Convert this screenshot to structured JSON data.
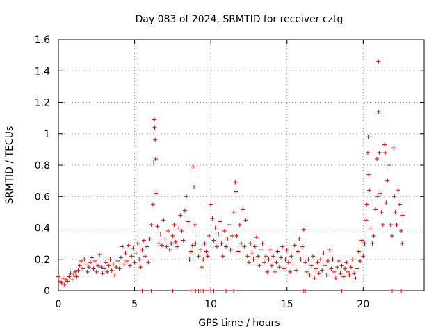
{
  "chart_data": {
    "type": "scatter",
    "title": "Day 083 of 2024, SRMTID for receiver cztg",
    "xlabel": "GPS time / hours",
    "ylabel": "SRMTID / TECUs",
    "xlim": [
      0,
      24
    ],
    "ylim": [
      0,
      1.6
    ],
    "grid": true,
    "marker": "+",
    "marker_color": "#e00000",
    "x_ticks": [
      0,
      5,
      10,
      15,
      20
    ],
    "x_tick_labels": [
      "0",
      "5",
      "10",
      "15",
      "20"
    ],
    "y_ticks": [
      0,
      0.2,
      0.4,
      0.6,
      0.8,
      1.0,
      1.2,
      1.4,
      1.6
    ],
    "y_tick_labels": [
      "0",
      "0.2",
      "0.4",
      "0.6",
      "0.8",
      "1",
      "1.2",
      "1.4",
      "1.6"
    ],
    "series": [
      {
        "name": "SRMTID",
        "points": [
          [
            0.0,
            0.09
          ],
          [
            0.1,
            0.06
          ],
          [
            0.2,
            0.05
          ],
          [
            0.3,
            0.08
          ],
          [
            0.4,
            0.04
          ],
          [
            0.5,
            0.07
          ],
          [
            0.6,
            0.06
          ],
          [
            0.7,
            0.09
          ],
          [
            0.8,
            0.11
          ],
          [
            0.9,
            0.07
          ],
          [
            1.0,
            0.1
          ],
          [
            1.1,
            0.12
          ],
          [
            1.2,
            0.09
          ],
          [
            1.3,
            0.13
          ],
          [
            1.4,
            0.16
          ],
          [
            1.5,
            0.19
          ],
          [
            1.6,
            0.14
          ],
          [
            1.7,
            0.2
          ],
          [
            1.8,
            0.17
          ],
          [
            1.9,
            0.12
          ],
          [
            2.0,
            0.15
          ],
          [
            2.1,
            0.18
          ],
          [
            2.2,
            0.21
          ],
          [
            2.3,
            0.14
          ],
          [
            2.4,
            0.19
          ],
          [
            2.5,
            0.12
          ],
          [
            2.6,
            0.16
          ],
          [
            2.7,
            0.23
          ],
          [
            2.8,
            0.15
          ],
          [
            2.9,
            0.11
          ],
          [
            3.0,
            0.14
          ],
          [
            3.1,
            0.18
          ],
          [
            3.2,
            0.12
          ],
          [
            3.3,
            0.16
          ],
          [
            3.4,
            0.2
          ],
          [
            3.5,
            0.13
          ],
          [
            3.6,
            0.17
          ],
          [
            3.7,
            0.1
          ],
          [
            3.8,
            0.15
          ],
          [
            3.9,
            0.19
          ],
          [
            4.0,
            0.14
          ],
          [
            4.1,
            0.21
          ],
          [
            4.2,
            0.28
          ],
          [
            4.3,
            0.17
          ],
          [
            4.4,
            0.24
          ],
          [
            4.5,
            0.19
          ],
          [
            4.6,
            0.29
          ],
          [
            4.7,
            0.16
          ],
          [
            4.8,
            0.22
          ],
          [
            4.9,
            0.27
          ],
          [
            5.0,
            0.18
          ],
          [
            5.1,
            0.24
          ],
          [
            5.2,
            0.3
          ],
          [
            5.3,
            0.2
          ],
          [
            5.4,
            0.15
          ],
          [
            5.5,
            0.26
          ],
          [
            5.6,
            0.32
          ],
          [
            5.7,
            0.22
          ],
          [
            5.8,
            0.28
          ],
          [
            5.9,
            0.18
          ],
          [
            6.0,
            0.33
          ],
          [
            6.1,
            0.42
          ],
          [
            6.2,
            0.55
          ],
          [
            6.25,
            0.82
          ],
          [
            6.3,
            1.09
          ],
          [
            6.32,
            1.04
          ],
          [
            6.35,
            0.96
          ],
          [
            6.38,
            0.84
          ],
          [
            6.4,
            0.62
          ],
          [
            6.5,
            0.41
          ],
          [
            6.6,
            0.3
          ],
          [
            6.7,
            0.36
          ],
          [
            6.8,
            0.29
          ],
          [
            6.9,
            0.45
          ],
          [
            7.0,
            0.33
          ],
          [
            7.1,
            0.28
          ],
          [
            7.2,
            0.38
          ],
          [
            7.3,
            0.26
          ],
          [
            7.4,
            0.3
          ],
          [
            7.5,
            0.35
          ],
          [
            7.6,
            0.42
          ],
          [
            7.7,
            0.31
          ],
          [
            7.8,
            0.28
          ],
          [
            7.9,
            0.4
          ],
          [
            8.0,
            0.48
          ],
          [
            8.1,
            0.38
          ],
          [
            8.2,
            0.32
          ],
          [
            8.3,
            0.51
          ],
          [
            8.4,
            0.6
          ],
          [
            8.5,
            0.44
          ],
          [
            8.6,
            0.2
          ],
          [
            8.7,
            0.25
          ],
          [
            8.8,
            0.29
          ],
          [
            8.85,
            0.79
          ],
          [
            8.9,
            0.66
          ],
          [
            8.95,
            0.42
          ],
          [
            9.0,
            0.3
          ],
          [
            9.1,
            0.36
          ],
          [
            9.2,
            0.22
          ],
          [
            9.3,
            0.26
          ],
          [
            9.4,
            0.15
          ],
          [
            9.5,
            0.2
          ],
          [
            9.6,
            0.3
          ],
          [
            9.7,
            0.25
          ],
          [
            9.8,
            0.22
          ],
          [
            9.9,
            0.35
          ],
          [
            10.0,
            0.55
          ],
          [
            10.1,
            0.46
          ],
          [
            10.2,
            0.32
          ],
          [
            10.3,
            0.4
          ],
          [
            10.4,
            0.28
          ],
          [
            10.5,
            0.36
          ],
          [
            10.6,
            0.44
          ],
          [
            10.7,
            0.3
          ],
          [
            10.8,
            0.22
          ],
          [
            10.9,
            0.38
          ],
          [
            11.0,
            0.28
          ],
          [
            11.1,
            0.33
          ],
          [
            11.2,
            0.42
          ],
          [
            11.3,
            0.26
          ],
          [
            11.4,
            0.35
          ],
          [
            11.5,
            0.5
          ],
          [
            11.6,
            0.69
          ],
          [
            11.65,
            0.63
          ],
          [
            11.7,
            0.35
          ],
          [
            11.8,
            0.25
          ],
          [
            11.9,
            0.42
          ],
          [
            12.0,
            0.3
          ],
          [
            12.1,
            0.52
          ],
          [
            12.2,
            0.28
          ],
          [
            12.3,
            0.45
          ],
          [
            12.4,
            0.22
          ],
          [
            12.5,
            0.18
          ],
          [
            12.6,
            0.3
          ],
          [
            12.7,
            0.24
          ],
          [
            12.8,
            0.2
          ],
          [
            12.9,
            0.28
          ],
          [
            13.0,
            0.34
          ],
          [
            13.1,
            0.22
          ],
          [
            13.2,
            0.16
          ],
          [
            13.3,
            0.26
          ],
          [
            13.4,
            0.3
          ],
          [
            13.5,
            0.18
          ],
          [
            13.6,
            0.22
          ],
          [
            13.7,
            0.12
          ],
          [
            13.8,
            0.2
          ],
          [
            13.9,
            0.26
          ],
          [
            14.0,
            0.16
          ],
          [
            14.1,
            0.22
          ],
          [
            14.2,
            0.12
          ],
          [
            14.3,
            0.18
          ],
          [
            14.4,
            0.25
          ],
          [
            14.5,
            0.15
          ],
          [
            14.6,
            0.21
          ],
          [
            14.7,
            0.28
          ],
          [
            14.8,
            0.14
          ],
          [
            14.9,
            0.2
          ],
          [
            15.0,
            0.26
          ],
          [
            15.1,
            0.18
          ],
          [
            15.2,
            0.12
          ],
          [
            15.3,
            0.22
          ],
          [
            15.4,
            0.17
          ],
          [
            15.5,
            0.29
          ],
          [
            15.6,
            0.13
          ],
          [
            15.7,
            0.25
          ],
          [
            15.8,
            0.33
          ],
          [
            15.9,
            0.2
          ],
          [
            16.0,
            0.28
          ],
          [
            16.1,
            0.39
          ],
          [
            16.2,
            0.18
          ],
          [
            16.3,
            0.12
          ],
          [
            16.4,
            0.2
          ],
          [
            16.5,
            0.1
          ],
          [
            16.6,
            0.16
          ],
          [
            16.7,
            0.22
          ],
          [
            16.8,
            0.08
          ],
          [
            16.9,
            0.14
          ],
          [
            17.0,
            0.18
          ],
          [
            17.1,
            0.11
          ],
          [
            17.2,
            0.2
          ],
          [
            17.3,
            0.13
          ],
          [
            17.4,
            0.24
          ],
          [
            17.5,
            0.16
          ],
          [
            17.6,
            0.1
          ],
          [
            17.7,
            0.19
          ],
          [
            17.8,
            0.26
          ],
          [
            17.9,
            0.14
          ],
          [
            18.0,
            0.2
          ],
          [
            18.1,
            0.12
          ],
          [
            18.2,
            0.08
          ],
          [
            18.3,
            0.15
          ],
          [
            18.4,
            0.19
          ],
          [
            18.5,
            0.11
          ],
          [
            18.6,
            0.16
          ],
          [
            18.7,
            0.09
          ],
          [
            18.8,
            0.14
          ],
          [
            18.9,
            0.18
          ],
          [
            19.0,
            0.12
          ],
          [
            19.1,
            0.1
          ],
          [
            19.2,
            0.15
          ],
          [
            19.3,
            0.2
          ],
          [
            19.4,
            0.11
          ],
          [
            19.5,
            0.08
          ],
          [
            19.6,
            0.14
          ],
          [
            19.7,
            0.25
          ],
          [
            19.8,
            0.19
          ],
          [
            19.9,
            0.32
          ],
          [
            20.0,
            0.22
          ],
          [
            20.1,
            0.3
          ],
          [
            20.2,
            0.45
          ],
          [
            20.25,
            0.55
          ],
          [
            20.3,
            0.88
          ],
          [
            20.33,
            0.98
          ],
          [
            20.36,
            0.74
          ],
          [
            20.4,
            0.64
          ],
          [
            20.5,
            0.4
          ],
          [
            20.6,
            0.3
          ],
          [
            20.7,
            0.35
          ],
          [
            20.8,
            0.52
          ],
          [
            20.9,
            0.84
          ],
          [
            20.95,
            0.6
          ],
          [
            21.0,
            1.46
          ],
          [
            21.02,
            1.14
          ],
          [
            21.05,
            0.88
          ],
          [
            21.1,
            0.62
          ],
          [
            21.2,
            0.5
          ],
          [
            21.3,
            0.42
          ],
          [
            21.4,
            0.93
          ],
          [
            21.45,
            0.88
          ],
          [
            21.5,
            0.56
          ],
          [
            21.6,
            0.7
          ],
          [
            21.7,
            0.8
          ],
          [
            21.8,
            0.42
          ],
          [
            21.9,
            0.35
          ],
          [
            22.0,
            0.91
          ],
          [
            22.05,
            0.6
          ],
          [
            22.1,
            0.5
          ],
          [
            22.2,
            0.42
          ],
          [
            22.3,
            0.64
          ],
          [
            22.4,
            0.55
          ],
          [
            22.5,
            0.38
          ],
          [
            22.55,
            0.3
          ],
          [
            22.6,
            0.48
          ],
          [
            5.5,
            0.0
          ],
          [
            6.1,
            0.0
          ],
          [
            7.5,
            0.0
          ],
          [
            8.7,
            0.0
          ],
          [
            9.0,
            0.0
          ],
          [
            9.1,
            0.0
          ],
          [
            9.2,
            0.0
          ],
          [
            9.3,
            0.0
          ],
          [
            9.5,
            0.0
          ],
          [
            10.0,
            0.0
          ],
          [
            10.2,
            0.0
          ],
          [
            11.0,
            0.0
          ],
          [
            11.5,
            0.0
          ],
          [
            16.1,
            0.0
          ],
          [
            16.2,
            0.0
          ],
          [
            18.6,
            0.0
          ],
          [
            21.9,
            0.0
          ],
          [
            22.5,
            0.0
          ]
        ]
      }
    ]
  }
}
